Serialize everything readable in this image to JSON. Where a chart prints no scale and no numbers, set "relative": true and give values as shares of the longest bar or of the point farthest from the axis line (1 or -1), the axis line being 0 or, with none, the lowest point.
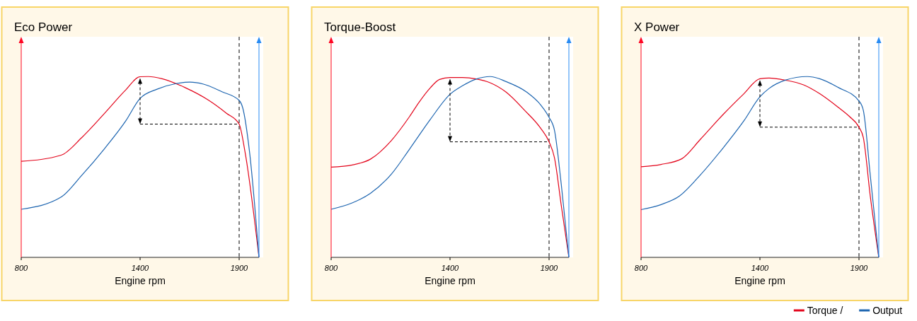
{
  "chart_data": [
    {
      "type": "line",
      "title": "Eco Power",
      "xlabel": "Engine rpm",
      "relative": true,
      "xlim": [
        800,
        2000
      ],
      "xticks": [
        800,
        1400,
        1900
      ],
      "ref_lines": [
        {
          "axis": "x",
          "value": 1900,
          "line_style": "dashed",
          "color": "#000000"
        }
      ],
      "legend": false,
      "series": [
        {
          "color": "#e3051b",
          "x": [
            800,
            1001,
            1105,
            1221,
            1326,
            1400,
            1442,
            1511,
            1627,
            1743,
            1836,
            1900,
            1929,
            2000
          ],
          "values": [
            0.531,
            0.565,
            0.662,
            0.797,
            0.924,
            0.999,
            1,
            0.988,
            0.939,
            0.871,
            0.797,
            0.737,
            0.587,
            0
          ]
        },
        {
          "color": "#1d65b0",
          "x": [
            800,
            1001,
            1105,
            1221,
            1326,
            1400,
            1488,
            1581,
            1651,
            1720,
            1813,
            1900,
            1918,
            1952,
            2000
          ],
          "values": [
            0.266,
            0.333,
            0.453,
            0.602,
            0.752,
            0.879,
            0.931,
            0.961,
            0.969,
            0.958,
            0.916,
            0.868,
            0.827,
            0.587,
            0
          ]
        }
      ]
    },
    {
      "type": "line",
      "title": "Torque-Boost",
      "xlabel": "Engine rpm",
      "relative": true,
      "xlim": [
        800,
        2000
      ],
      "xticks": [
        800,
        1400,
        1900
      ],
      "ref_lines": [
        {
          "axis": "x",
          "value": 1900,
          "line_style": "dashed",
          "color": "#000000"
        }
      ],
      "legend": false,
      "series": [
        {
          "color": "#e3051b",
          "x": [
            800,
            906,
            998,
            1103,
            1196,
            1242,
            1300,
            1347,
            1400,
            1463,
            1532,
            1602,
            1683,
            1776,
            1857,
            1900,
            1927,
            1962,
            2000
          ],
          "values": [
            0.499,
            0.511,
            0.543,
            0.645,
            0.779,
            0.855,
            0.937,
            0.984,
            0.995,
            0.995,
            0.987,
            0.966,
            0.914,
            0.814,
            0.715,
            0.639,
            0.552,
            0.284,
            0
          ]
        },
        {
          "color": "#1d65b0",
          "x": [
            800,
            906,
            998,
            1103,
            1196,
            1300,
            1400,
            1463,
            1532,
            1602,
            1683,
            1787,
            1857,
            1900,
            1927,
            1962,
            2000
          ],
          "values": [
            0.266,
            0.301,
            0.354,
            0.459,
            0.599,
            0.762,
            0.902,
            0.949,
            0.986,
            1,
            0.972,
            0.914,
            0.844,
            0.774,
            0.704,
            0.4,
            0
          ]
        }
      ]
    },
    {
      "type": "line",
      "title": "X Power",
      "xlabel": "Engine rpm",
      "relative": true,
      "xlim": [
        800,
        2000
      ],
      "xticks": [
        800,
        1400,
        1900
      ],
      "ref_lines": [
        {
          "axis": "x",
          "value": 1900,
          "line_style": "dashed",
          "color": "#000000"
        }
      ],
      "legend": "bottom right",
      "series": [
        {
          "name": "Torque /",
          "color": "#e3051b",
          "x": [
            800,
            901,
            1005,
            1098,
            1214,
            1319,
            1400,
            1446,
            1528,
            1620,
            1702,
            1795,
            1853,
            1900,
            1922,
            1957,
            2000
          ],
          "values": [
            0.501,
            0.514,
            0.545,
            0.651,
            0.79,
            0.905,
            0.988,
            0.992,
            0.98,
            0.954,
            0.905,
            0.83,
            0.778,
            0.72,
            0.662,
            0.339,
            0
          ]
        },
        {
          "name": "Output",
          "color": "#1d65b0",
          "x": [
            800,
            901,
            994,
            1098,
            1214,
            1319,
            1400,
            1446,
            1528,
            1639,
            1702,
            1795,
            1900,
            1922,
            1957,
            2000
          ],
          "values": [
            0.264,
            0.292,
            0.339,
            0.454,
            0.605,
            0.755,
            0.888,
            0.934,
            0.98,
            1,
            0.988,
            0.94,
            0.865,
            0.813,
            0.454,
            0
          ]
        }
      ]
    }
  ]
}
